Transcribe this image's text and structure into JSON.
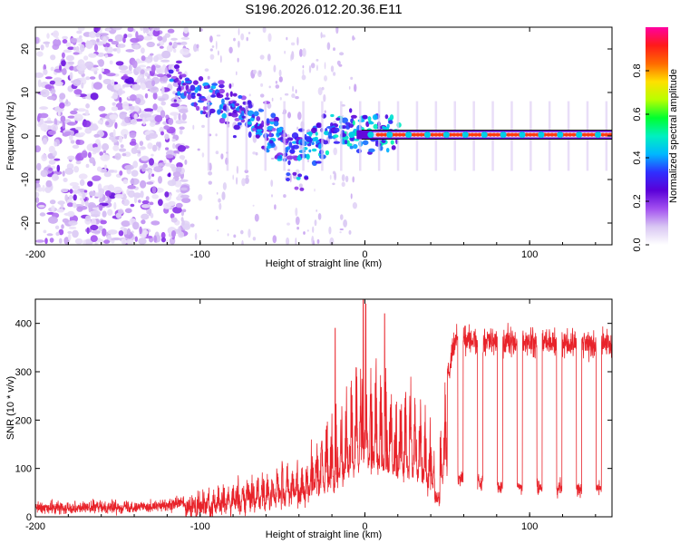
{
  "title": "S196.2026.012.20.36.E11",
  "chart_data": [
    {
      "type": "heatmap",
      "xlabel": "Height of straight line (km)",
      "ylabel": "Frequency (Hz)",
      "xlim": [
        -200,
        150
      ],
      "ylim": [
        -25,
        25
      ],
      "xticks": [
        -200,
        -100,
        0,
        100
      ],
      "xtick_labels": [
        "-200",
        "-100",
        "0",
        "100"
      ],
      "yticks": [
        20,
        10,
        0,
        -10,
        -20
      ],
      "ytick_labels": [
        "20",
        "10",
        "0",
        "-10",
        "-20"
      ],
      "ridge": {
        "x": [
          -115,
          -105,
          -95,
          -85,
          -75,
          -65,
          -55,
          -45,
          -35,
          -25,
          -15,
          -5,
          5,
          15,
          150
        ],
        "y": [
          12,
          10,
          9,
          7,
          5,
          3,
          1,
          -2,
          -3,
          0,
          1,
          1,
          0.5,
          0.3,
          0.3
        ]
      },
      "colorbar": {
        "label": "Normalized spectral amplitude",
        "range": [
          0,
          1
        ],
        "ticks": [
          0.0,
          0.2,
          0.4,
          0.6,
          0.8
        ],
        "tick_labels": [
          "0.0",
          "0.2",
          "0.4",
          "0.6",
          "0.8"
        ],
        "colors": [
          "#ffffff",
          "#d9c7f3",
          "#a24ff0",
          "#5a00d8",
          "#2f2fff",
          "#00b8ff",
          "#00f0c0",
          "#00ff30",
          "#b8ff00",
          "#ffe000",
          "#ff6a00",
          "#ff1a1a",
          "#ff00a0"
        ]
      }
    },
    {
      "type": "line",
      "xlabel": "Height of straight line (km)",
      "ylabel": "SNR (10 * v/v)",
      "xlim": [
        -200,
        150
      ],
      "ylim": [
        0,
        450
      ],
      "xticks": [
        -200,
        -100,
        0,
        100
      ],
      "xtick_labels": [
        "-200",
        "-100",
        "0",
        "100"
      ],
      "yticks": [
        0,
        100,
        200,
        300,
        400
      ],
      "ytick_labels": [
        "0",
        "100",
        "200",
        "300",
        "400"
      ],
      "color": "#e8232a",
      "envelope": {
        "x": [
          -200,
          -120,
          -100,
          -80,
          -60,
          -40,
          -20,
          -10,
          -2,
          0,
          10,
          20,
          30,
          40,
          45,
          50,
          55,
          70,
          100,
          150
        ],
        "y": [
          18,
          22,
          40,
          70,
          90,
          110,
          200,
          260,
          320,
          330,
          290,
          270,
          250,
          180,
          200,
          280,
          370,
          365,
          360,
          355
        ]
      },
      "dips": {
        "x": [
          44,
          58,
          70,
          82,
          94,
          106,
          118,
          130,
          142
        ],
        "y": [
          40,
          80,
          70,
          60,
          60,
          60,
          60,
          60,
          60
        ]
      },
      "peaks": {
        "x": [
          -18,
          -1,
          0.5,
          12
        ],
        "y": [
          390,
          455,
          440,
          420
        ]
      }
    }
  ]
}
